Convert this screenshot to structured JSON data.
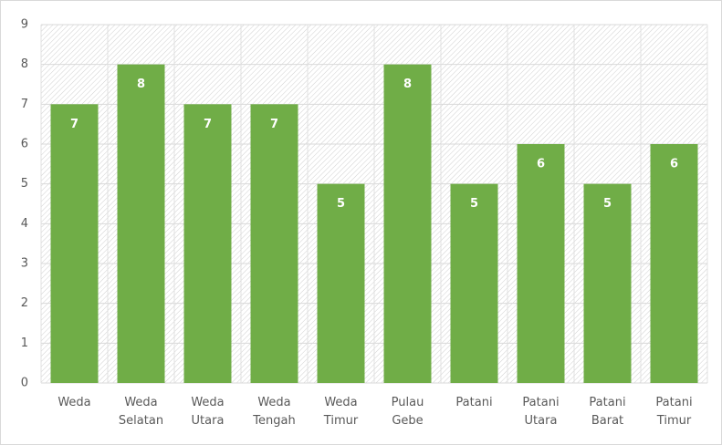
{
  "chart_data": {
    "type": "bar",
    "categories": [
      "Weda",
      "Weda Selatan",
      "Weda Utara",
      "Weda Tengah",
      "Weda Timur",
      "Pulau Gebe",
      "Patani",
      "Patani Utara",
      "Patani Barat",
      "Patani Timur"
    ],
    "values": [
      7,
      8,
      7,
      7,
      5,
      8,
      5,
      6,
      5,
      6
    ],
    "color": "#70ad47",
    "ylim": [
      0,
      9
    ],
    "yticks": [
      0,
      1,
      2,
      3,
      4,
      5,
      6,
      7,
      8,
      9
    ],
    "grid": true
  }
}
